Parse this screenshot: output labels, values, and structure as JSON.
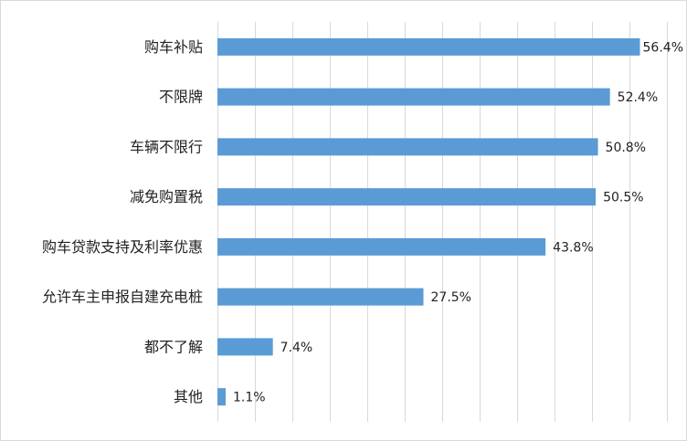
{
  "chart_data": {
    "type": "bar",
    "orientation": "horizontal",
    "categories": [
      "购车补贴",
      "不限牌",
      "车辆不限行",
      "减免购置税",
      "购车贷款支持及利率优惠",
      "允许车主申报自建充电桩",
      "都不了解",
      "其他"
    ],
    "values": [
      56.4,
      52.4,
      50.8,
      50.5,
      43.8,
      27.5,
      7.4,
      1.1
    ],
    "data_labels": [
      "56.4%",
      "52.4%",
      "50.8%",
      "50.5%",
      "43.8%",
      "27.5%",
      "7.4%",
      "1.1%"
    ],
    "xlim": [
      0,
      60
    ],
    "x_unit": "%",
    "grid": "vertical",
    "legend": "none",
    "title": "",
    "xlabel": "",
    "ylabel": "",
    "bar_color": "#5b9bd5",
    "grid_color": "#d9d9d9"
  }
}
